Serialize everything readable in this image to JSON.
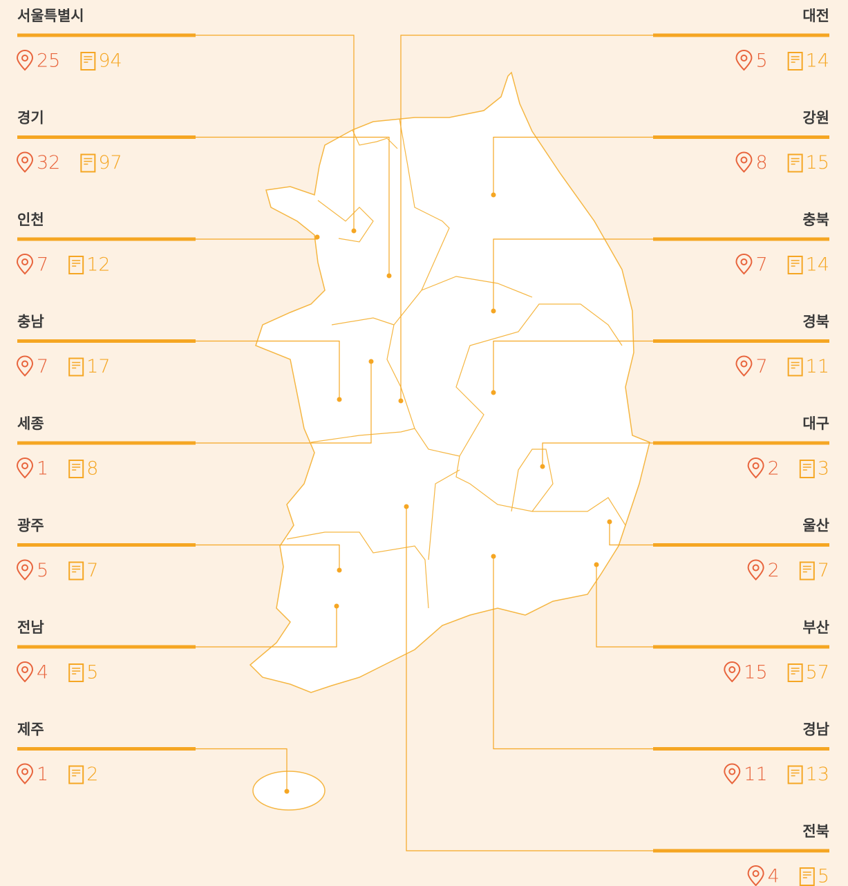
{
  "left_regions": [
    {
      "name": "서울특별시",
      "places": 25,
      "documents": 94
    },
    {
      "name": "경기",
      "places": 32,
      "documents": 97
    },
    {
      "name": "인천",
      "places": 7,
      "documents": 12
    },
    {
      "name": "충남",
      "places": 7,
      "documents": 17
    },
    {
      "name": "세종",
      "places": 1,
      "documents": 8
    },
    {
      "name": "광주",
      "places": 5,
      "documents": 7
    },
    {
      "name": "전남",
      "places": 4,
      "documents": 5
    },
    {
      "name": "제주",
      "places": 1,
      "documents": 2
    }
  ],
  "right_regions": [
    {
      "name": "대전",
      "places": 5,
      "documents": 14
    },
    {
      "name": "강원",
      "places": 8,
      "documents": 15
    },
    {
      "name": "충북",
      "places": 7,
      "documents": 14
    },
    {
      "name": "경북",
      "places": 7,
      "documents": 11
    },
    {
      "name": "대구",
      "places": 2,
      "documents": 3
    },
    {
      "name": "울산",
      "places": 2,
      "documents": 7
    },
    {
      "name": "부산",
      "places": 15,
      "documents": 57
    },
    {
      "name": "경남",
      "places": 11,
      "documents": 13
    },
    {
      "name": "전북",
      "places": 4,
      "documents": 5
    }
  ]
}
